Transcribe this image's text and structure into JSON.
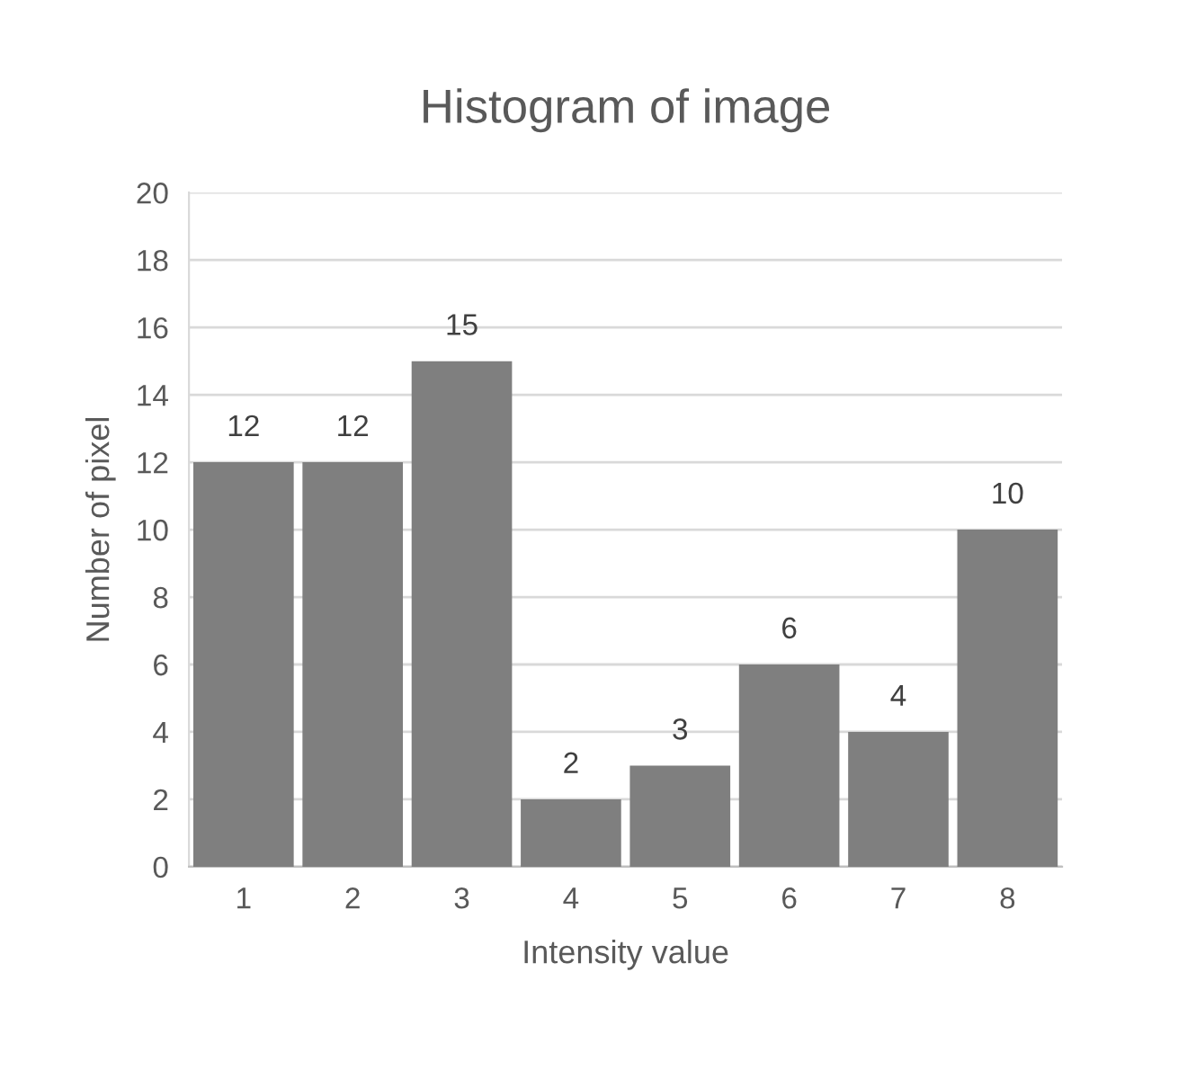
{
  "chart_data": {
    "type": "bar",
    "title": "Histogram of image",
    "xlabel": "Intensity value",
    "ylabel": "Number of pixel",
    "categories": [
      "1",
      "2",
      "3",
      "4",
      "5",
      "6",
      "7",
      "8"
    ],
    "values": [
      12,
      12,
      15,
      2,
      3,
      6,
      4,
      10
    ],
    "color": "#7f7f7f",
    "ylim": [
      0,
      20
    ],
    "yticks": [
      0,
      2,
      4,
      6,
      8,
      10,
      12,
      14,
      16,
      18,
      20
    ],
    "grid": "y",
    "data_labels": true,
    "legend": false
  }
}
